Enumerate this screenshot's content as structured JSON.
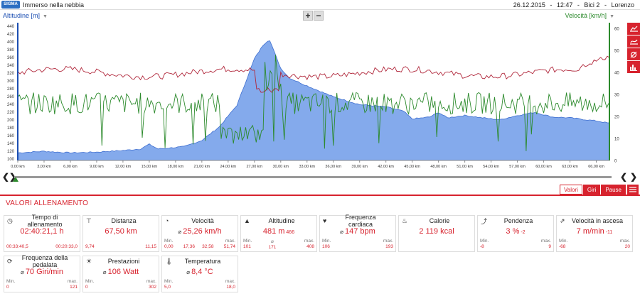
{
  "header": {
    "logo": "SIGMA",
    "title": "Immerso nella nebbia",
    "date": "26.12.2015",
    "time": "12:47",
    "bike": "Bici 2",
    "user": "Lorenzo",
    "separator": "-"
  },
  "chart": {
    "left_axis_title": "Altitudine [m]",
    "right_axis_title": "Velocità [km/h]",
    "left_ticks": [
      "440",
      "420",
      "400",
      "380",
      "360",
      "340",
      "320",
      "300",
      "280",
      "260",
      "240",
      "220",
      "200",
      "180",
      "160",
      "140",
      "120",
      "100"
    ],
    "right_ticks": [
      "60",
      "50",
      "40",
      "30",
      "20",
      "10",
      "0"
    ],
    "x_ticks": [
      "0,00 km",
      "3,00 km",
      "6,00 km",
      "9,00 km",
      "12,00 km",
      "15,00 km",
      "18,00 km",
      "21,00 km",
      "24,00 km",
      "27,00 km",
      "30,00 km",
      "33,00 km",
      "36,00 km",
      "39,00 km",
      "42,00 km",
      "45,00 km",
      "48,00 km",
      "51,00 km",
      "54,00 km",
      "57,00 km",
      "60,00 km",
      "63,00 km",
      "66,00 km"
    ],
    "colors": {
      "altitude_fill": "#5b8ee6",
      "altitude_line": "#3f6fd0",
      "speed": "#2c8a2c",
      "heart": "#b0263a",
      "accent": "#d7232e"
    }
  },
  "zoom": {
    "plus": "+",
    "minus": "−"
  },
  "tools": [
    "line-chart-icon",
    "trend-icon",
    "no-filter-icon",
    "bar-chart-icon"
  ],
  "slider": {
    "left": "❮❯",
    "right_a": "❮",
    "right_b": "❯"
  },
  "tabs": {
    "items": [
      "Valori",
      "Giri",
      "Pause"
    ],
    "active": "Valori"
  },
  "section": {
    "title": "VALORI ALLENAMENTO"
  },
  "cards": [
    {
      "title": "Tempo di allenamento",
      "icon": "clock-icon",
      "main": "02:40:21,1 h",
      "foot": [
        {
          "l": "",
          "v": "00:33:40,5"
        },
        {
          "l": "",
          "v": "00:20:33,0"
        }
      ]
    },
    {
      "title": "Distanza",
      "icon": "road-icon",
      "main": "67,50 km",
      "foot": [
        {
          "l": "",
          "v": "9,74"
        },
        {
          "l": "",
          "v": "11,15"
        }
      ]
    },
    {
      "title": "Velocità",
      "icon": "speedometer-icon",
      "main_prefix": "⌀",
      "main": "25,26 km/h",
      "foot": [
        {
          "l": "Min.",
          "v": "0,00"
        },
        {
          "l": "",
          "v": "17,36"
        },
        {
          "l": "",
          "v": "32,58"
        },
        {
          "l": "max.",
          "v": "51,74"
        }
      ]
    },
    {
      "title": "Altitudine",
      "icon": "mountain-icon",
      "main": "481 m",
      "main_sub": "466",
      "foot": [
        {
          "l": "Min.",
          "v": "101"
        },
        {
          "l": "⌀",
          "v": "171"
        },
        {
          "l": "max.",
          "v": "408"
        }
      ]
    },
    {
      "title": "Frequenza cardiaca",
      "icon": "heart-icon",
      "main_prefix": "⌀",
      "main": "147 bpm",
      "foot": [
        {
          "l": "Min.",
          "v": "106"
        },
        {
          "l": "max.",
          "v": "193"
        }
      ]
    },
    {
      "title": "Calorie",
      "icon": "flame-icon",
      "main": "2 119 kcal",
      "foot": []
    },
    {
      "title": "Pendenza",
      "icon": "slope-icon",
      "main": "3 %",
      "main_sub": "-2",
      "foot": [
        {
          "l": "Min.",
          "v": "-8"
        },
        {
          "l": "max.",
          "v": "9"
        }
      ]
    },
    {
      "title": "Velocità in ascesa",
      "icon": "climb-icon",
      "main": "7 m/min",
      "main_sub": "-11",
      "foot": [
        {
          "l": "Min.",
          "v": "-68"
        },
        {
          "l": "max.",
          "v": "20"
        }
      ]
    },
    {
      "title": "Frequenza della pedalata",
      "icon": "cadence-icon",
      "main_prefix": "⌀",
      "main": "70 Giri/min",
      "foot": [
        {
          "l": "Min.",
          "v": "0"
        },
        {
          "l": "max.",
          "v": "121"
        }
      ]
    },
    {
      "title": "Prestazioni",
      "icon": "power-icon",
      "main_prefix": "⌀",
      "main": "106 Watt",
      "foot": [
        {
          "l": "Min.",
          "v": "0"
        },
        {
          "l": "max.",
          "v": "302"
        }
      ]
    },
    {
      "title": "Temperatura",
      "icon": "thermometer-icon",
      "main_prefix": "⌀",
      "main": "8,4 °C",
      "foot": [
        {
          "l": "Min.",
          "v": "5,0"
        },
        {
          "l": "max.",
          "v": "18,0"
        }
      ]
    }
  ]
}
